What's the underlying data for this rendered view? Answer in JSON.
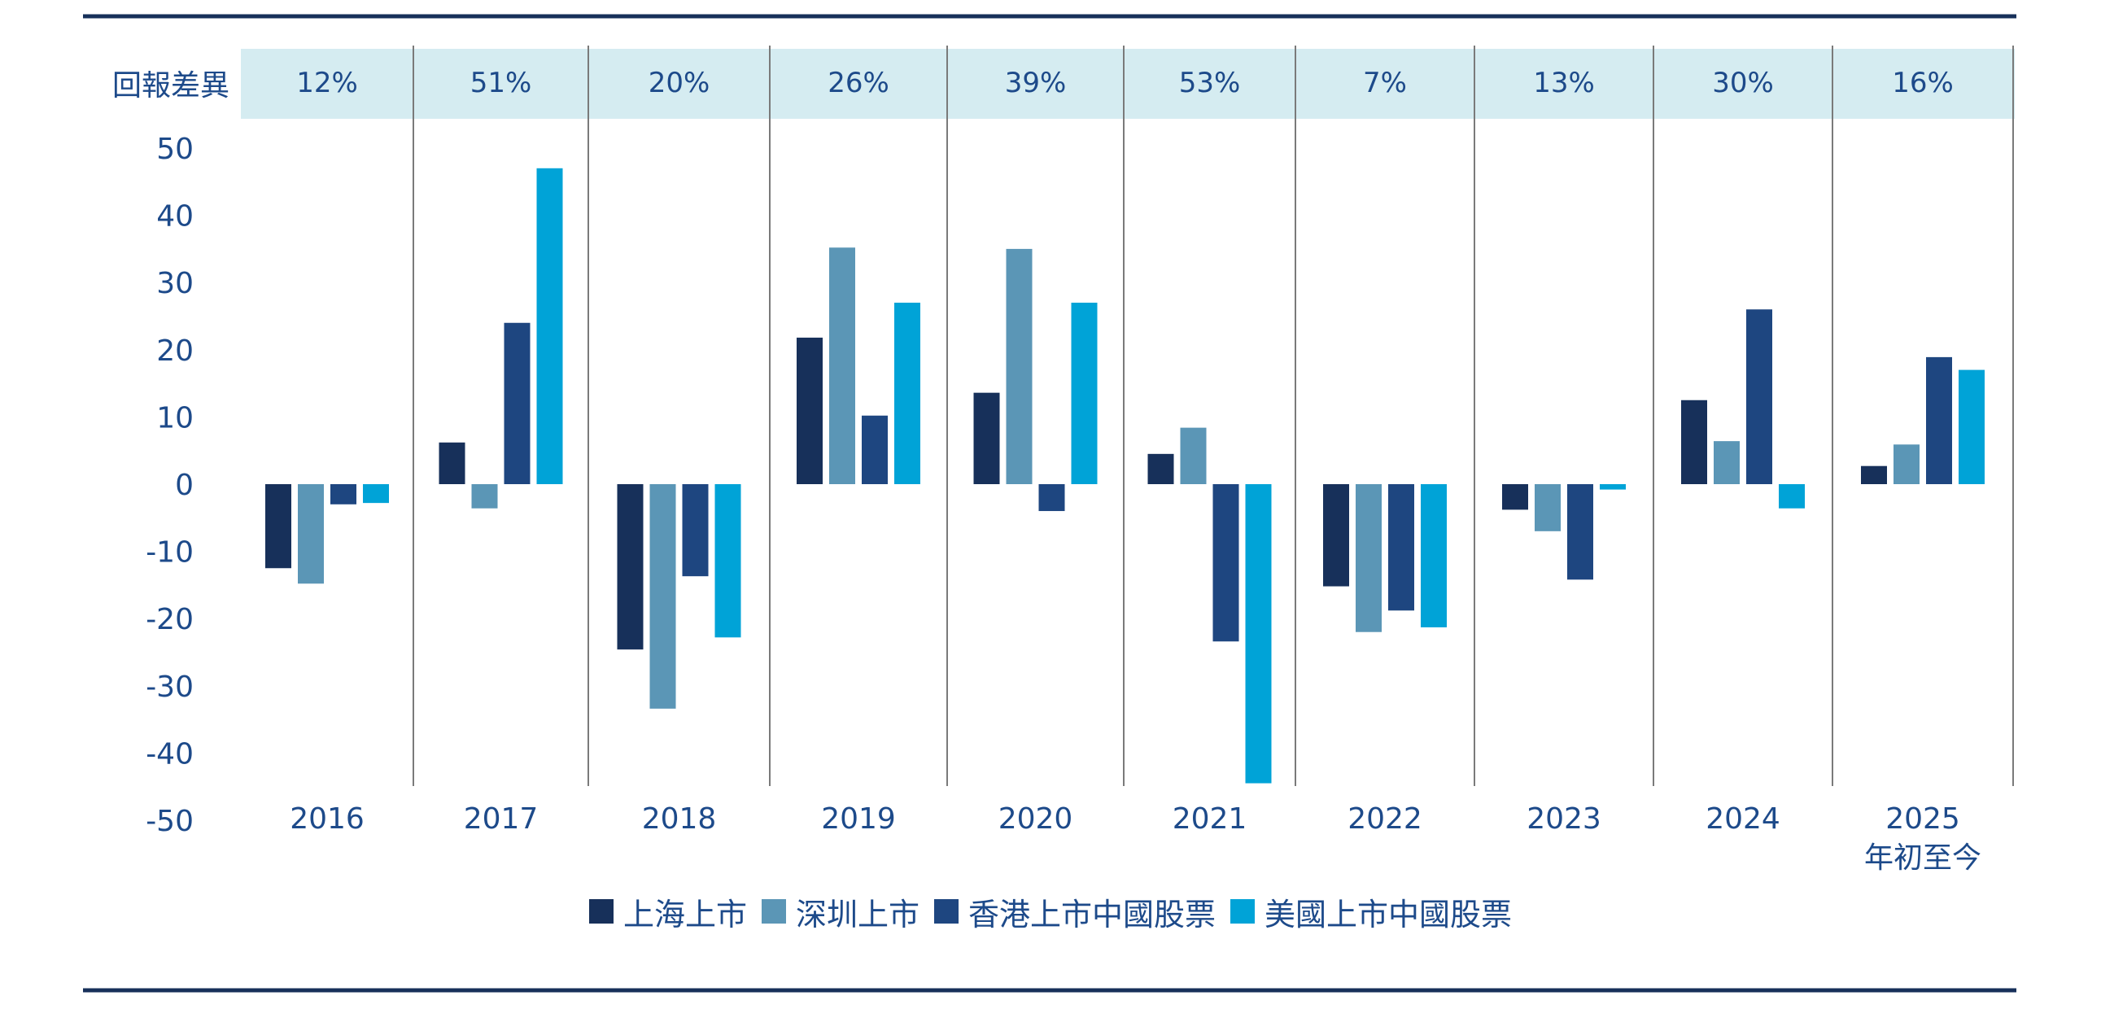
{
  "chart_data": {
    "type": "bar",
    "spread_label": "回報差異",
    "categories": [
      "2016",
      "2017",
      "2018",
      "2019",
      "2020",
      "2021",
      "2022",
      "2023",
      "2024",
      "2025"
    ],
    "category_sublabels": [
      "",
      "",
      "",
      "",
      "",
      "",
      "",
      "",
      "",
      "年初至今"
    ],
    "spreads": [
      "12%",
      "51%",
      "20%",
      "26%",
      "39%",
      "53%",
      "7%",
      "13%",
      "30%",
      "16%"
    ],
    "ylim": [
      -50,
      50
    ],
    "yticks": [
      "50",
      "40",
      "30",
      "20",
      "10",
      "0",
      "-10",
      "-20",
      "-30",
      "-40",
      "-50"
    ],
    "series": [
      {
        "name": "上海上市",
        "color": "#17305a",
        "values": [
          -12.5,
          6.2,
          -24.6,
          21.8,
          13.6,
          4.5,
          -15.2,
          -3.8,
          12.5,
          2.7
        ]
      },
      {
        "name": "深圳上市",
        "color": "#5b96b6",
        "values": [
          -14.8,
          -3.6,
          -33.4,
          35.2,
          35.0,
          8.4,
          -22.0,
          -7.0,
          6.4,
          5.9
        ]
      },
      {
        "name": "香港上市中國股票",
        "color": "#1e4680",
        "values": [
          -3.0,
          24.0,
          -13.7,
          10.2,
          -4.0,
          -23.4,
          -18.8,
          -14.2,
          26.0,
          18.9
        ]
      },
      {
        "name": "美國上市中國股票",
        "color": "#00a3d7",
        "values": [
          -2.8,
          47.0,
          -22.8,
          27.0,
          27.0,
          -44.5,
          -21.3,
          -0.8,
          -3.6,
          17.0
        ]
      }
    ],
    "colors": {
      "spread_band": "#d5ecf1",
      "rule": "#17305a",
      "divider": "#7a7a7a",
      "text": "#1d4a8a"
    }
  }
}
